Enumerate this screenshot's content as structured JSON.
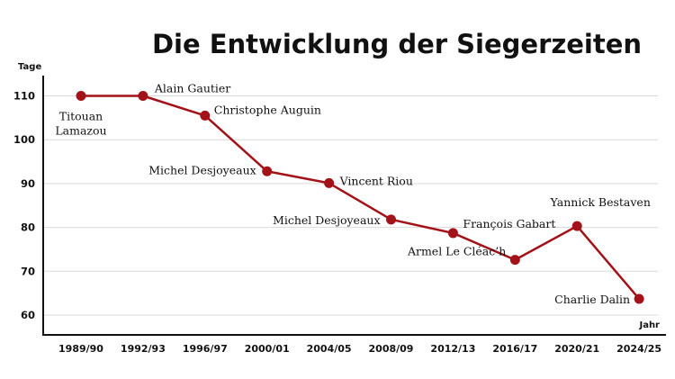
{
  "chart_data": {
    "type": "line",
    "title": "Die Entwicklung der Siegerzeiten",
    "ylabel": "Tage",
    "xlabel": "Jahr",
    "categories": [
      "1989/90",
      "1992/93",
      "1996/97",
      "2000/01",
      "2004/05",
      "2008/09",
      "2012/13",
      "2016/17",
      "2020/21",
      "2024/25"
    ],
    "yticks": [
      60,
      70,
      80,
      90,
      100,
      110
    ],
    "ylim": [
      55,
      115
    ],
    "grid": true,
    "series": [
      {
        "values": [
          110,
          110,
          105.5,
          92.8,
          90.1,
          81.8,
          78.7,
          72.6,
          80.3,
          63.7
        ],
        "point_labels": [
          [
            "Titouan",
            "Lamazou"
          ],
          [
            "Alain Gautier"
          ],
          [
            "Christophe Auguin"
          ],
          [
            "Michel Desjoyeaux"
          ],
          [
            "Vincent Riou"
          ],
          [
            "Michel Desjoyeaux"
          ],
          [
            "François Gabart"
          ],
          [
            "Armel Le Cléac’h"
          ],
          [
            "Yannick Bestaven"
          ],
          [
            "Charlie Dalin"
          ]
        ]
      }
    ],
    "colors": {
      "line": "#a31218",
      "axis": "#111111",
      "grid": "#d9d9d9"
    }
  }
}
